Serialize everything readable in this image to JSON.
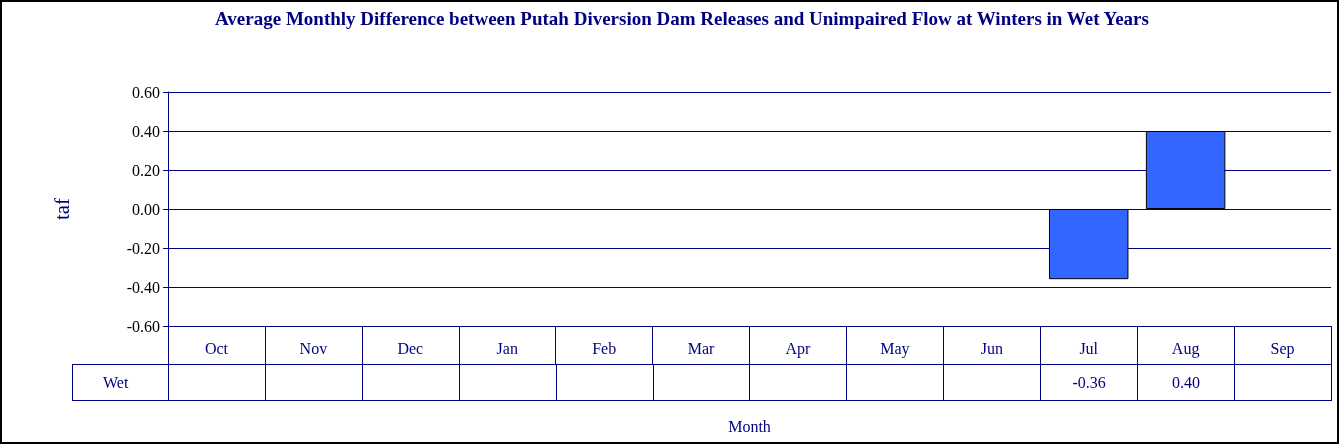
{
  "chart_data": {
    "type": "bar",
    "title": "Average Monthly Difference between Putah Diversion Dam Releases and Unimpaired Flow at Winters in Wet Years",
    "xlabel": "Month",
    "ylabel": "taf",
    "categories": [
      "Oct",
      "Nov",
      "Dec",
      "Jan",
      "Feb",
      "Mar",
      "Apr",
      "May",
      "Jun",
      "Jul",
      "Aug",
      "Sep"
    ],
    "series": [
      {
        "name": "Wet",
        "color": "#3366ff",
        "values": [
          null,
          null,
          null,
          null,
          null,
          null,
          null,
          null,
          null,
          -0.36,
          0.4,
          null
        ],
        "value_labels": [
          null,
          null,
          null,
          null,
          null,
          null,
          null,
          null,
          null,
          "-0.36",
          "0.40",
          null
        ]
      }
    ],
    "ylim": [
      -0.6,
      0.6
    ],
    "yticks": [
      {
        "value": -0.6,
        "label": "-0.60"
      },
      {
        "value": -0.4,
        "label": "-0.40"
      },
      {
        "value": -0.2,
        "label": "-0.20"
      },
      {
        "value": 0,
        "label": "0.00"
      },
      {
        "value": 0.2,
        "label": "0.20"
      },
      {
        "value": 0.4,
        "label": "0.40"
      },
      {
        "value": 0.6,
        "label": "0.60"
      }
    ],
    "grid": "y",
    "legend": false
  }
}
